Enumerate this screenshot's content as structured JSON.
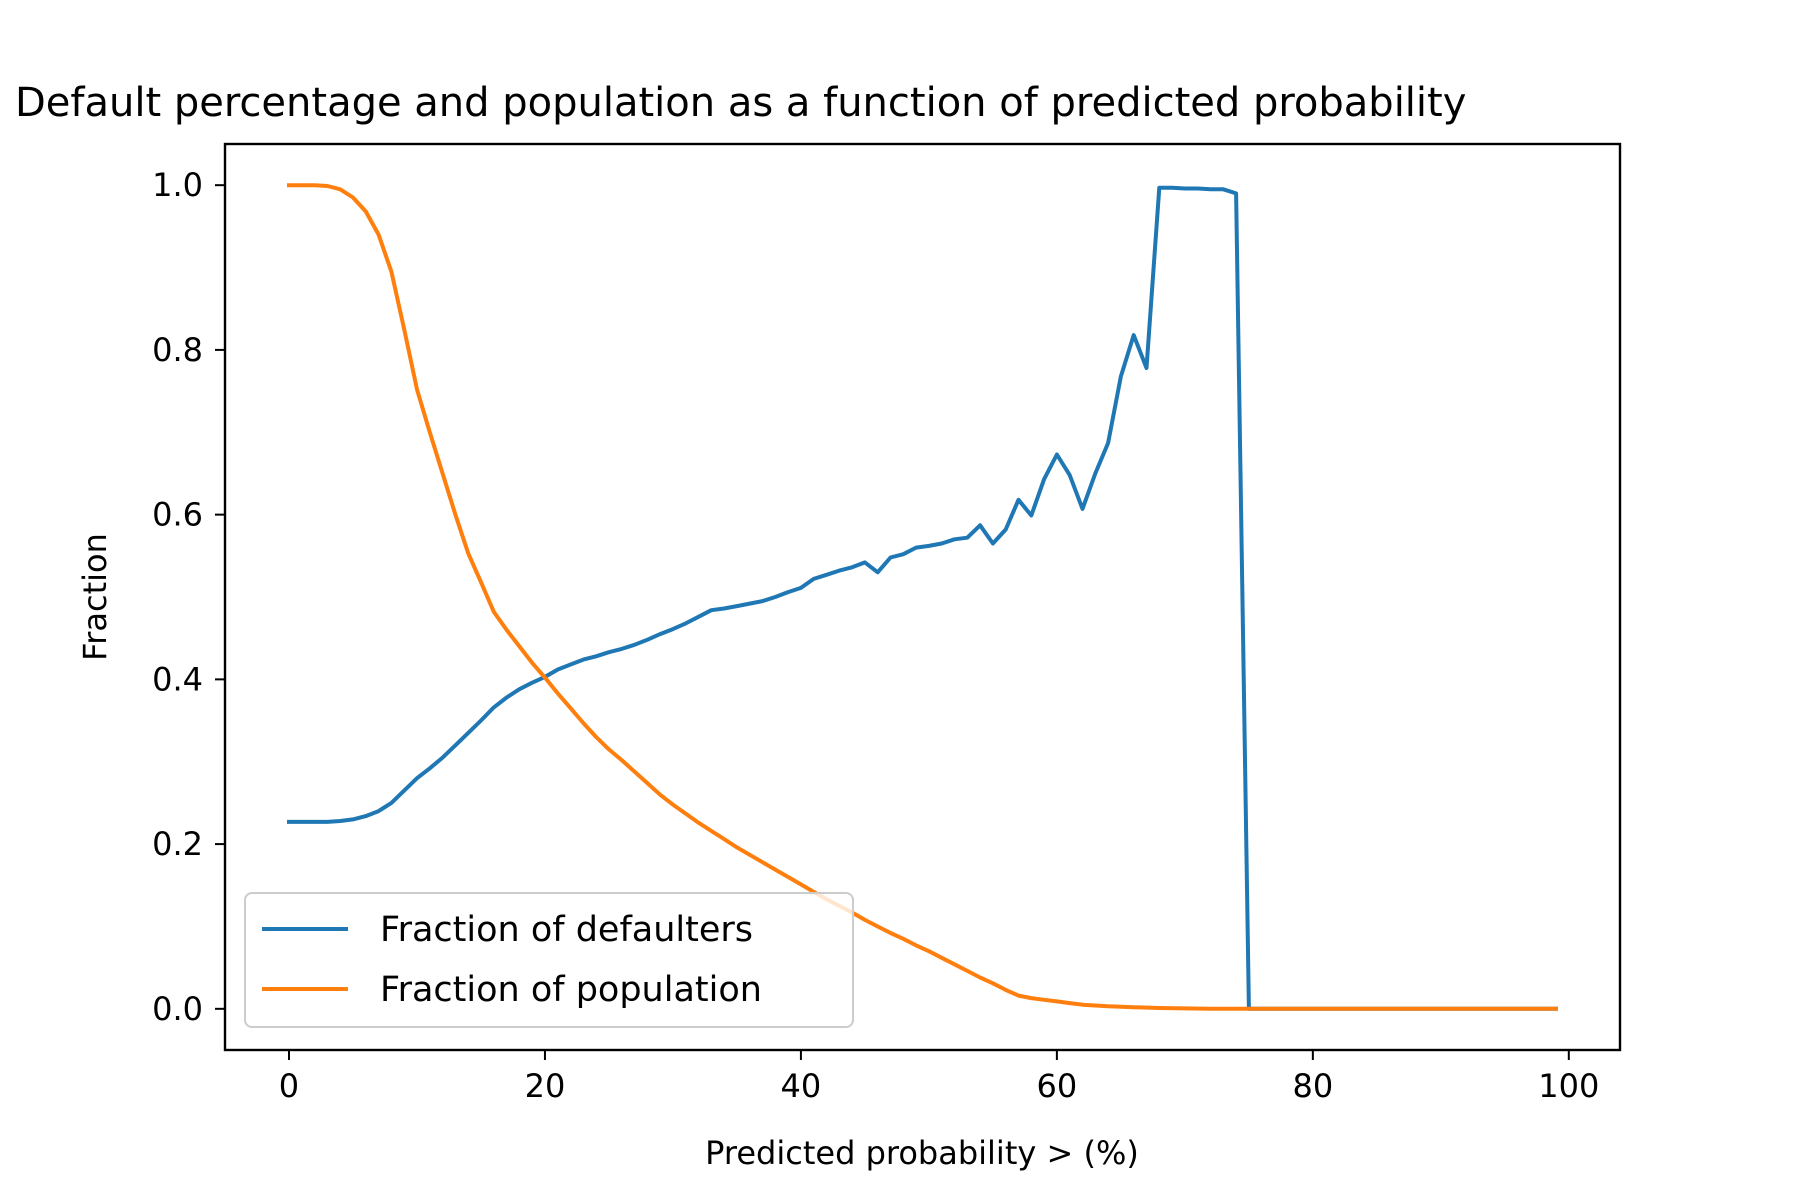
{
  "chart_data": {
    "type": "line",
    "title": "Default percentage and population as a function of predicted probability",
    "xlabel": "Predicted probability > (%)",
    "ylabel": "Fraction",
    "xlim": [
      -5,
      104
    ],
    "ylim": [
      -0.05,
      1.05
    ],
    "xticks": [
      0,
      20,
      40,
      60,
      80,
      100
    ],
    "yticks": [
      0.0,
      0.2,
      0.4,
      0.6,
      0.8,
      1.0
    ],
    "xtick_labels": [
      "0",
      "20",
      "40",
      "60",
      "80",
      "100"
    ],
    "ytick_labels": [
      "0.0",
      "0.2",
      "0.4",
      "0.6",
      "0.8",
      "1.0"
    ],
    "grid": false,
    "legend_position": "lower-left",
    "series": [
      {
        "name": "Fraction of defaulters",
        "color": "#1f77b4",
        "points": [
          [
            0,
            0.227
          ],
          [
            1,
            0.227
          ],
          [
            2,
            0.227
          ],
          [
            3,
            0.227
          ],
          [
            4,
            0.228
          ],
          [
            5,
            0.23
          ],
          [
            6,
            0.234
          ],
          [
            7,
            0.24
          ],
          [
            8,
            0.25
          ],
          [
            9,
            0.265
          ],
          [
            10,
            0.28
          ],
          [
            11,
            0.292
          ],
          [
            12,
            0.305
          ],
          [
            13,
            0.32
          ],
          [
            14,
            0.335
          ],
          [
            15,
            0.35
          ],
          [
            16,
            0.366
          ],
          [
            17,
            0.378
          ],
          [
            18,
            0.388
          ],
          [
            19,
            0.396
          ],
          [
            20,
            0.403
          ],
          [
            21,
            0.412
          ],
          [
            22,
            0.418
          ],
          [
            23,
            0.424
          ],
          [
            24,
            0.428
          ],
          [
            25,
            0.433
          ],
          [
            26,
            0.437
          ],
          [
            27,
            0.442
          ],
          [
            28,
            0.448
          ],
          [
            29,
            0.455
          ],
          [
            30,
            0.461
          ],
          [
            31,
            0.468
          ],
          [
            32,
            0.476
          ],
          [
            33,
            0.484
          ],
          [
            34,
            0.486
          ],
          [
            35,
            0.489
          ],
          [
            36,
            0.492
          ],
          [
            37,
            0.495
          ],
          [
            38,
            0.5
          ],
          [
            39,
            0.506
          ],
          [
            40,
            0.511
          ],
          [
            41,
            0.522
          ],
          [
            42,
            0.527
          ],
          [
            43,
            0.532
          ],
          [
            44,
            0.536
          ],
          [
            45,
            0.542
          ],
          [
            46,
            0.53
          ],
          [
            47,
            0.548
          ],
          [
            48,
            0.552
          ],
          [
            49,
            0.56
          ],
          [
            50,
            0.562
          ],
          [
            51,
            0.565
          ],
          [
            52,
            0.57
          ],
          [
            53,
            0.572
          ],
          [
            54,
            0.587
          ],
          [
            55,
            0.565
          ],
          [
            56,
            0.582
          ],
          [
            57,
            0.618
          ],
          [
            58,
            0.599
          ],
          [
            59,
            0.643
          ],
          [
            60,
            0.673
          ],
          [
            61,
            0.648
          ],
          [
            62,
            0.607
          ],
          [
            63,
            0.65
          ],
          [
            64,
            0.687
          ],
          [
            65,
            0.768
          ],
          [
            66,
            0.818
          ],
          [
            67,
            0.778
          ],
          [
            68,
            0.997
          ],
          [
            69,
            0.997
          ],
          [
            70,
            0.996
          ],
          [
            71,
            0.996
          ],
          [
            72,
            0.995
          ],
          [
            73,
            0.995
          ],
          [
            74,
            0.99
          ],
          [
            75,
            0.0
          ],
          [
            76,
            0.0
          ],
          [
            78,
            0.0
          ],
          [
            80,
            0.0
          ],
          [
            85,
            0.0
          ],
          [
            90,
            0.0
          ],
          [
            95,
            0.0
          ],
          [
            99,
            0.0
          ]
        ]
      },
      {
        "name": "Fraction of population",
        "color": "#ff7f0e",
        "points": [
          [
            0,
            1.0
          ],
          [
            1,
            1.0
          ],
          [
            2,
            1.0
          ],
          [
            3,
            0.999
          ],
          [
            4,
            0.995
          ],
          [
            5,
            0.985
          ],
          [
            6,
            0.968
          ],
          [
            7,
            0.94
          ],
          [
            8,
            0.895
          ],
          [
            9,
            0.825
          ],
          [
            10,
            0.752
          ],
          [
            11,
            0.7
          ],
          [
            12,
            0.65
          ],
          [
            13,
            0.6
          ],
          [
            14,
            0.553
          ],
          [
            15,
            0.518
          ],
          [
            16,
            0.482
          ],
          [
            17,
            0.46
          ],
          [
            18,
            0.44
          ],
          [
            19,
            0.42
          ],
          [
            20,
            0.402
          ],
          [
            21,
            0.383
          ],
          [
            22,
            0.365
          ],
          [
            23,
            0.347
          ],
          [
            24,
            0.33
          ],
          [
            25,
            0.315
          ],
          [
            26,
            0.302
          ],
          [
            27,
            0.288
          ],
          [
            28,
            0.274
          ],
          [
            29,
            0.26
          ],
          [
            30,
            0.248
          ],
          [
            31,
            0.237
          ],
          [
            32,
            0.226
          ],
          [
            33,
            0.216
          ],
          [
            34,
            0.206
          ],
          [
            35,
            0.196
          ],
          [
            36,
            0.187
          ],
          [
            37,
            0.178
          ],
          [
            38,
            0.169
          ],
          [
            39,
            0.16
          ],
          [
            40,
            0.151
          ],
          [
            41,
            0.142
          ],
          [
            42,
            0.133
          ],
          [
            43,
            0.125
          ],
          [
            44,
            0.117
          ],
          [
            45,
            0.108
          ],
          [
            46,
            0.1
          ],
          [
            47,
            0.092
          ],
          [
            48,
            0.085
          ],
          [
            49,
            0.077
          ],
          [
            50,
            0.07
          ],
          [
            51,
            0.062
          ],
          [
            52,
            0.054
          ],
          [
            53,
            0.046
          ],
          [
            54,
            0.038
          ],
          [
            55,
            0.031
          ],
          [
            56,
            0.023
          ],
          [
            57,
            0.016
          ],
          [
            58,
            0.013
          ],
          [
            59,
            0.011
          ],
          [
            60,
            0.009
          ],
          [
            61,
            0.007
          ],
          [
            62,
            0.005
          ],
          [
            63,
            0.004
          ],
          [
            64,
            0.003
          ],
          [
            66,
            0.002
          ],
          [
            68,
            0.001
          ],
          [
            72,
            0.0
          ],
          [
            76,
            0.0
          ],
          [
            80,
            0.0
          ],
          [
            85,
            0.0
          ],
          [
            90,
            0.0
          ],
          [
            95,
            0.0
          ],
          [
            99,
            0.0
          ]
        ]
      }
    ]
  }
}
